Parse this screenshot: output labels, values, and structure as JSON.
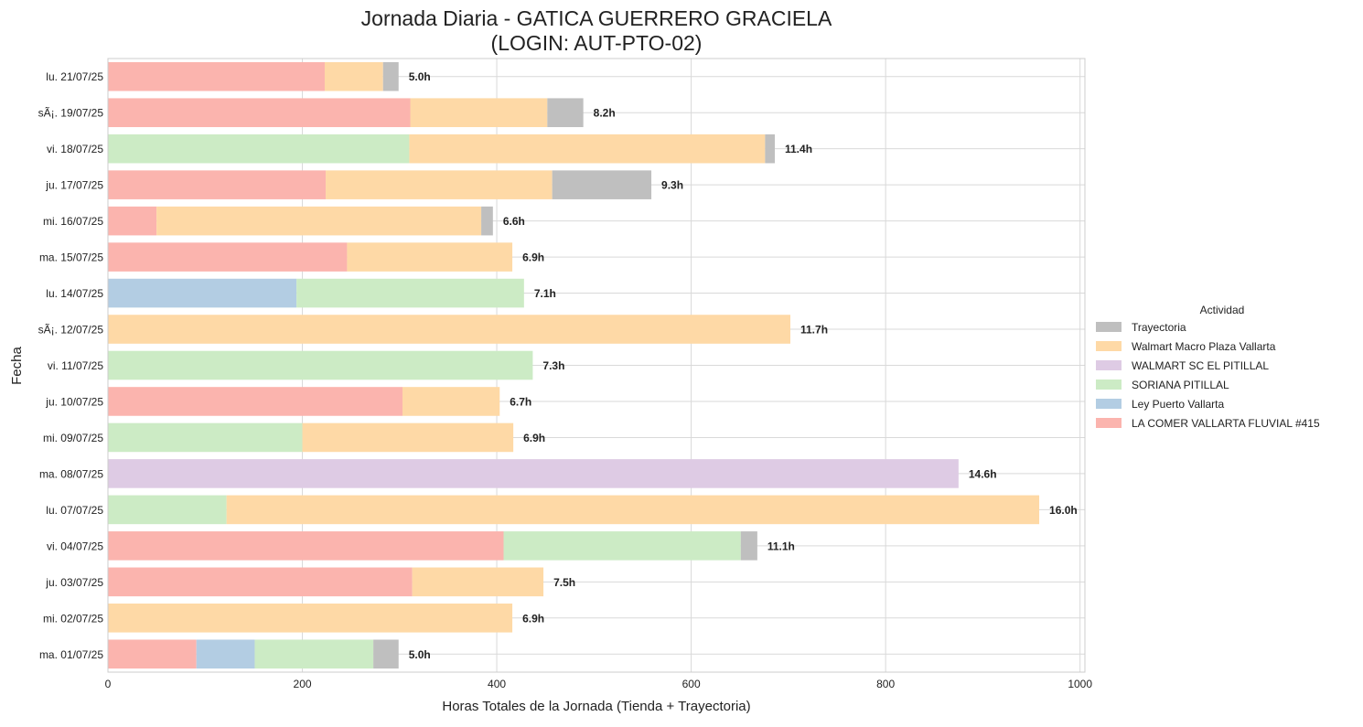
{
  "chart_data": {
    "type": "bar",
    "orientation": "horizontal",
    "stacked": true,
    "title_line1": "Jornada Diaria - GATICA GUERRERO GRACIELA",
    "title_line2": "(LOGIN: AUT-PTO-02)",
    "xlabel": "Horas Totales de la Jornada (Tienda + Trayectoria)",
    "ylabel": "Fecha",
    "xlim": [
      0,
      1005
    ],
    "xticks": [
      0,
      200,
      400,
      600,
      800,
      1000
    ],
    "grid": true,
    "legend_title": "Actividad",
    "legend_position": "right",
    "categories": [
      "lu. 21/07/25",
      "sÃ¡. 19/07/25",
      "vi. 18/07/25",
      "ju. 17/07/25",
      "mi. 16/07/25",
      "ma. 15/07/25",
      "lu. 14/07/25",
      "sÃ¡. 12/07/25",
      "vi. 11/07/25",
      "ju. 10/07/25",
      "mi. 09/07/25",
      "ma. 08/07/25",
      "lu. 07/07/25",
      "vi. 04/07/25",
      "ju. 03/07/25",
      "mi. 02/07/25",
      "ma. 01/07/25"
    ],
    "stack_order": [
      "LA COMER VALLARTA FLUVIAL #415",
      "Ley Puerto Vallarta",
      "SORIANA PITILLAL",
      "WALMART SC EL PITILLAL",
      "Walmart Macro Plaza Vallarta",
      "Trayectoria"
    ],
    "legend_order": [
      "Trayectoria",
      "Walmart Macro Plaza Vallarta",
      "WALMART SC EL PITILLAL",
      "SORIANA PITILLAL",
      "Ley Puerto Vallarta",
      "LA COMER VALLARTA FLUVIAL #415"
    ],
    "series": [
      {
        "name": "LA COMER VALLARTA FLUVIAL #415",
        "color": "#fbb4ae",
        "values": [
          223,
          311,
          0,
          224,
          50,
          246,
          0,
          0,
          0,
          303,
          0,
          0,
          0,
          407,
          313,
          0,
          91
        ]
      },
      {
        "name": "Ley Puerto Vallarta",
        "color": "#b3cde3",
        "values": [
          0,
          0,
          0,
          0,
          0,
          0,
          194,
          0,
          0,
          0,
          0,
          0,
          0,
          0,
          0,
          0,
          60
        ]
      },
      {
        "name": "SORIANA PITILLAL",
        "color": "#ccebc5",
        "values": [
          0,
          0,
          310,
          0,
          0,
          0,
          234,
          0,
          437,
          0,
          200,
          0,
          122,
          244,
          0,
          0,
          122
        ]
      },
      {
        "name": "WALMART SC EL PITILLAL",
        "color": "#decbe4",
        "values": [
          0,
          0,
          0,
          0,
          0,
          0,
          0,
          0,
          0,
          0,
          0,
          875,
          0,
          0,
          0,
          0,
          0
        ]
      },
      {
        "name": "Walmart Macro Plaza Vallarta",
        "color": "#fed9a6",
        "values": [
          60,
          141,
          366,
          233,
          334,
          170,
          0,
          702,
          0,
          100,
          217,
          0,
          836,
          0,
          135,
          416,
          0
        ]
      },
      {
        "name": "Trayectoria",
        "color": "#bfbfbf",
        "values": [
          16,
          37,
          10,
          102,
          12,
          0,
          0,
          0,
          0,
          0,
          0,
          0,
          0,
          17,
          0,
          0,
          26
        ]
      }
    ],
    "data_labels": [
      "5.0h",
      "8.2h",
      "11.4h",
      "9.3h",
      "6.6h",
      "6.9h",
      "7.1h",
      "11.7h",
      "7.3h",
      "6.7h",
      "6.9h",
      "14.6h",
      "16.0h",
      "11.1h",
      "7.5h",
      "6.9h",
      "5.0h"
    ]
  }
}
